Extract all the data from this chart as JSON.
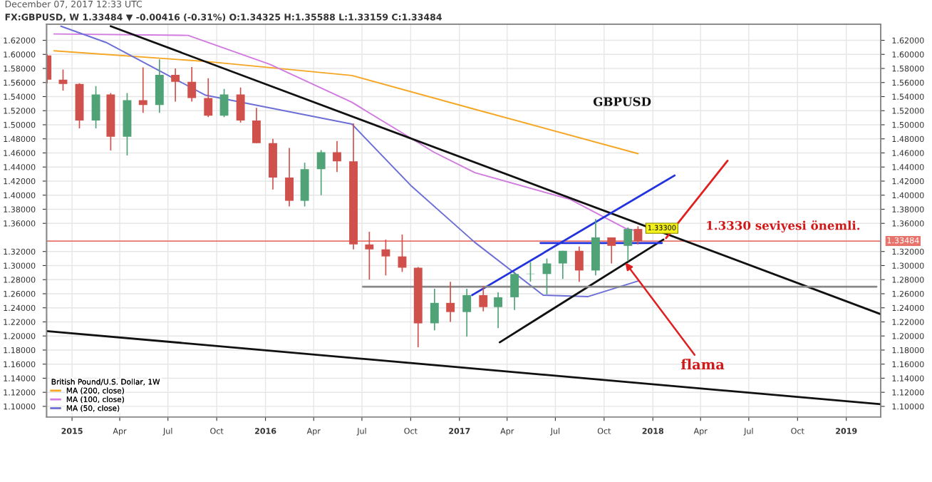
{
  "chart_data": {
    "type": "candlestick",
    "title": "FX:GBPUSD, W 1.33484 ▼ -0.00416 (-0.31%) O:1.34325 H:1.35588 L:1.33159 C:1.33484",
    "subtitle": "December 07, 2017 12:33 UTC",
    "legend_title": "British Pound/U.S. Dollar, 1W",
    "x": [
      "2014-11-15",
      "2014-12-15",
      "2015-01-15",
      "2015-02-15",
      "2015-03-15",
      "2015-04-15",
      "2015-05-15",
      "2015-06-15",
      "2015-07-15",
      "2015-08-15",
      "2015-09-15",
      "2015-10-15",
      "2015-11-15",
      "2015-12-15",
      "2016-01-15",
      "2016-02-15",
      "2016-03-15",
      "2016-04-15",
      "2016-05-15",
      "2016-06-15",
      "2016-07-15",
      "2016-08-15",
      "2016-09-15",
      "2016-10-15",
      "2016-11-15",
      "2016-12-15",
      "2017-01-15",
      "2017-02-15",
      "2017-03-15",
      "2017-04-15",
      "2017-05-15",
      "2017-06-15",
      "2017-07-15",
      "2017-08-15",
      "2017-09-15",
      "2017-10-15",
      "2017-11-15",
      "2017-12-04"
    ],
    "ohlc": [
      [
        1.5985,
        1.6,
        1.559,
        1.564
      ],
      [
        1.564,
        1.5785,
        1.5485,
        1.558
      ],
      [
        1.558,
        1.559,
        1.495,
        1.506
      ],
      [
        1.506,
        1.555,
        1.495,
        1.543
      ],
      [
        1.543,
        1.545,
        1.4635,
        1.483
      ],
      [
        1.483,
        1.545,
        1.4565,
        1.535
      ],
      [
        1.535,
        1.5815,
        1.517,
        1.528
      ],
      [
        1.528,
        1.593,
        1.517,
        1.571
      ],
      [
        1.571,
        1.58,
        1.533,
        1.561
      ],
      [
        1.561,
        1.582,
        1.533,
        1.538
      ],
      [
        1.538,
        1.566,
        1.511,
        1.513
      ],
      [
        1.513,
        1.551,
        1.511,
        1.543
      ],
      [
        1.543,
        1.553,
        1.503,
        1.506
      ],
      [
        1.506,
        1.524,
        1.474,
        1.474
      ],
      [
        1.474,
        1.48,
        1.408,
        1.425
      ],
      [
        1.425,
        1.467,
        1.384,
        1.392
      ],
      [
        1.392,
        1.446,
        1.384,
        1.437
      ],
      [
        1.437,
        1.464,
        1.4,
        1.461
      ],
      [
        1.461,
        1.477,
        1.433,
        1.448
      ],
      [
        1.448,
        1.502,
        1.323,
        1.33
      ],
      [
        1.33,
        1.348,
        1.28,
        1.323
      ],
      [
        1.323,
        1.337,
        1.286,
        1.313
      ],
      [
        1.313,
        1.344,
        1.291,
        1.297
      ],
      [
        1.297,
        1.298,
        1.184,
        1.218
      ],
      [
        1.218,
        1.267,
        1.208,
        1.247
      ],
      [
        1.247,
        1.277,
        1.22,
        1.234
      ],
      [
        1.234,
        1.267,
        1.199,
        1.258
      ],
      [
        1.258,
        1.271,
        1.235,
        1.241
      ],
      [
        1.241,
        1.262,
        1.211,
        1.255
      ],
      [
        1.255,
        1.291,
        1.237,
        1.288
      ],
      [
        1.288,
        1.305,
        1.277,
        1.288
      ],
      [
        1.288,
        1.31,
        1.259,
        1.303
      ],
      [
        1.303,
        1.321,
        1.281,
        1.321
      ],
      [
        1.321,
        1.327,
        1.277,
        1.293
      ],
      [
        1.293,
        1.366,
        1.286,
        1.34
      ],
      [
        1.34,
        1.34,
        1.303,
        1.328
      ],
      [
        1.328,
        1.354,
        1.306,
        1.352
      ],
      [
        1.352,
        1.3559,
        1.33,
        1.3348
      ]
    ],
    "series": [
      {
        "name": "MA (200, close)",
        "type": "line",
        "color": "#f5a623",
        "x": [
          "2014-11-28",
          "2015-09-10",
          "2016-06-12",
          "2017-01-30",
          "2017-12-04"
        ],
        "values": [
          1.605,
          1.59,
          1.57,
          1.522,
          1.459
        ]
      },
      {
        "name": "MA (100, close)",
        "type": "line",
        "color": "#d17be0",
        "x": [
          "2014-11-28",
          "2015-08-08",
          "2016-01-09",
          "2016-06-12",
          "2016-11-14",
          "2017-01-30",
          "2017-07-29",
          "2017-11-10",
          "2017-12-04"
        ],
        "values": [
          1.629,
          1.627,
          1.586,
          1.532,
          1.461,
          1.432,
          1.394,
          1.353,
          1.349
        ]
      },
      {
        "name": "MA (50, close)",
        "type": "line",
        "color": "#6c6fd6",
        "x": [
          "2014-12-11",
          "2015-03-06",
          "2015-09-10",
          "2016-06-12",
          "2016-10-01",
          "2017-01-30",
          "2017-06-08",
          "2017-09-01",
          "2017-12-04"
        ],
        "values": [
          1.64,
          1.617,
          1.542,
          1.501,
          1.414,
          1.333,
          1.258,
          1.256,
          1.278
        ]
      },
      {
        "type": "line",
        "color": "#111111",
        "x": [
          "2015-03-15",
          "2019-03-07"
        ],
        "values": [
          1.64,
          1.231
        ]
      },
      {
        "type": "line",
        "color": "#111111",
        "x": [
          "2014-11-14",
          "2019-03-07"
        ],
        "values": [
          1.207,
          1.103
        ]
      },
      {
        "type": "line",
        "color": "#2233dd",
        "x": [
          "2017-01-25",
          "2018-02-11"
        ],
        "values": [
          1.258,
          1.428
        ]
      },
      {
        "type": "line",
        "color": "#111111",
        "x": [
          "2017-03-18",
          "2018-01-21"
        ],
        "values": [
          1.191,
          1.337
        ]
      },
      {
        "type": "line",
        "color": "#888888",
        "x": [
          "2016-07-03",
          "2019-02-27"
        ],
        "values": [
          1.27,
          1.27
        ]
      },
      {
        "type": "line",
        "color": "#2233dd",
        "x": [
          "2017-06-03",
          "2018-01-18"
        ],
        "values": [
          1.332,
          1.332
        ]
      },
      {
        "type": "line",
        "color": "#e02020",
        "x": [
          "2018-01-26",
          "2018-05-22"
        ],
        "values": [
          1.339,
          1.449
        ]
      }
    ],
    "annotations": [
      {
        "text": "GBPUSD"
      },
      {
        "text": "1.3330 seviyesi önemli."
      },
      {
        "text": "flama",
        "x": "2017-11-10",
        "y": 1.3043
      },
      {
        "text": "1.33300",
        "x": "2018-01-18",
        "y": 1.353
      }
    ],
    "ref_lines": [
      {
        "axis": "y",
        "value": 1.33484,
        "label": "1.33484",
        "color": "#e8736b"
      }
    ],
    "xlim": [
      "2014-11-14",
      "2019-03-07"
    ],
    "xticks": [
      {
        "value": "2015-01-01",
        "label": "2015"
      },
      {
        "value": "2015-04-01",
        "label": "Apr"
      },
      {
        "value": "2015-07-01",
        "label": "Jul"
      },
      {
        "value": "2015-10-01",
        "label": "Oct"
      },
      {
        "value": "2016-01-01",
        "label": "2016"
      },
      {
        "value": "2016-04-01",
        "label": "Apr"
      },
      {
        "value": "2016-07-01",
        "label": "Jul"
      },
      {
        "value": "2016-10-01",
        "label": "Oct"
      },
      {
        "value": "2017-01-01",
        "label": "2017"
      },
      {
        "value": "2017-04-01",
        "label": "Apr"
      },
      {
        "value": "2017-07-01",
        "label": "Jul"
      },
      {
        "value": "2017-10-01",
        "label": "Oct"
      },
      {
        "value": "2018-01-01",
        "label": "2018"
      },
      {
        "value": "2018-04-01",
        "label": "Apr"
      },
      {
        "value": "2018-07-01",
        "label": "Jul"
      },
      {
        "value": "2018-10-01",
        "label": "Oct"
      },
      {
        "value": "2019-01-01",
        "label": "2019"
      }
    ],
    "ylim": [
      1.085,
      1.643
    ],
    "yticks": [
      {
        "value": 1.1,
        "label": "1.10000"
      },
      {
        "value": 1.12,
        "label": "1.12000"
      },
      {
        "value": 1.14,
        "label": "1.14000"
      },
      {
        "value": 1.16,
        "label": "1.16000"
      },
      {
        "value": 1.18,
        "label": "1.18000"
      },
      {
        "value": 1.2,
        "label": "1.20000"
      },
      {
        "value": 1.22,
        "label": "1.22000"
      },
      {
        "value": 1.24,
        "label": "1.24000"
      },
      {
        "value": 1.26,
        "label": "1.26000"
      },
      {
        "value": 1.28,
        "label": "1.28000"
      },
      {
        "value": 1.3,
        "label": "1.30000"
      },
      {
        "value": 1.32,
        "label": "1.32000"
      },
      {
        "value": 1.36,
        "label": "1.36000"
      },
      {
        "value": 1.38,
        "label": "1.38000"
      },
      {
        "value": 1.4,
        "label": "1.40000"
      },
      {
        "value": 1.42,
        "label": "1.42000"
      },
      {
        "value": 1.44,
        "label": "1.44000"
      },
      {
        "value": 1.46,
        "label": "1.46000"
      },
      {
        "value": 1.48,
        "label": "1.48000"
      },
      {
        "value": 1.5,
        "label": "1.50000"
      },
      {
        "value": 1.52,
        "label": "1.52000"
      },
      {
        "value": 1.54,
        "label": "1.54000"
      },
      {
        "value": 1.56,
        "label": "1.56000"
      },
      {
        "value": 1.58,
        "label": "1.58000"
      },
      {
        "value": 1.6,
        "label": "1.60000"
      },
      {
        "value": 1.62,
        "label": "1.62000"
      }
    ],
    "y2lim": [
      1.085,
      1.643
    ],
    "y2ticks": [
      {
        "value": 1.1,
        "label": "1.10000"
      },
      {
        "value": 1.12,
        "label": "1.12000"
      },
      {
        "value": 1.14,
        "label": "1.14000"
      },
      {
        "value": 1.16,
        "label": "1.16000"
      },
      {
        "value": 1.18,
        "label": "1.18000"
      },
      {
        "value": 1.2,
        "label": "1.20000"
      },
      {
        "value": 1.22,
        "label": "1.22000"
      },
      {
        "value": 1.24,
        "label": "1.24000"
      },
      {
        "value": 1.26,
        "label": "1.26000"
      },
      {
        "value": 1.28,
        "label": "1.28000"
      },
      {
        "value": 1.3,
        "label": "1.30000"
      },
      {
        "value": 1.32,
        "label": "1.32000"
      },
      {
        "value": 1.36,
        "label": "1.36000"
      },
      {
        "value": 1.38,
        "label": "1.38000"
      },
      {
        "value": 1.4,
        "label": "1.40000"
      },
      {
        "value": 1.42,
        "label": "1.42000"
      },
      {
        "value": 1.44,
        "label": "1.44000"
      },
      {
        "value": 1.46,
        "label": "1.46000"
      },
      {
        "value": 1.48,
        "label": "1.48000"
      },
      {
        "value": 1.5,
        "label": "1.50000"
      },
      {
        "value": 1.52,
        "label": "1.52000"
      },
      {
        "value": 1.54,
        "label": "1.54000"
      },
      {
        "value": 1.56,
        "label": "1.56000"
      },
      {
        "value": 1.58,
        "label": "1.58000"
      },
      {
        "value": 1.6,
        "label": "1.60000"
      },
      {
        "value": 1.62,
        "label": "1.62000"
      }
    ],
    "grid": true,
    "legend": "bottom left"
  }
}
